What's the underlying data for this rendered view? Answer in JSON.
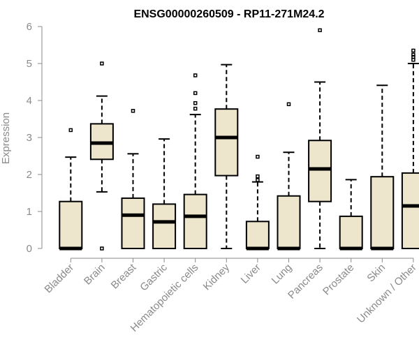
{
  "chart_data": {
    "type": "boxplot",
    "title": "ENSG00000260509 - RP11-271M24.2",
    "xlabel": "",
    "ylabel": "Expression",
    "ylim": [
      0,
      6
    ],
    "yticks": [
      0,
      1,
      2,
      3,
      4,
      5,
      6
    ],
    "grid": false,
    "colors": {
      "box_fill": "#ede6cd",
      "box_stroke": "#000000",
      "axis": "#8a8a8a"
    },
    "categories": [
      "Bladder",
      "Brain",
      "Breast",
      "Gastric",
      "Hematopoietic cells",
      "Kidney",
      "Liver",
      "Lung",
      "Pancreas",
      "Prostate",
      "Skin",
      "Unknown / Other"
    ],
    "boxes": [
      {
        "name": "Bladder",
        "whislo": 0,
        "q1": 0,
        "med": 0,
        "q3": 1.27,
        "whishi": 2.47,
        "fliers": [
          3.2
        ]
      },
      {
        "name": "Brain",
        "whislo": 1.53,
        "q1": 2.41,
        "med": 2.85,
        "q3": 3.37,
        "whishi": 4.12,
        "fliers": [
          5.0,
          0.0
        ]
      },
      {
        "name": "Breast",
        "whislo": 0,
        "q1": 0,
        "med": 0.9,
        "q3": 1.36,
        "whishi": 2.56,
        "fliers": [
          3.72
        ]
      },
      {
        "name": "Gastric",
        "whislo": 0,
        "q1": 0,
        "med": 0.72,
        "q3": 1.2,
        "whishi": 2.96,
        "fliers": []
      },
      {
        "name": "Hematopoietic cells",
        "whislo": 0,
        "q1": 0,
        "med": 0.87,
        "q3": 1.46,
        "whishi": 3.62,
        "fliers": [
          3.78,
          3.93,
          4.2,
          4.68
        ]
      },
      {
        "name": "Kidney",
        "whislo": 0,
        "q1": 1.97,
        "med": 3.0,
        "q3": 3.77,
        "whishi": 4.97,
        "fliers": []
      },
      {
        "name": "Liver",
        "whislo": 0,
        "q1": 0,
        "med": 0,
        "q3": 0.73,
        "whishi": 1.8,
        "fliers": [
          1.85,
          1.95,
          2.48
        ]
      },
      {
        "name": "Lung",
        "whislo": 0,
        "q1": 0,
        "med": 0,
        "q3": 1.42,
        "whishi": 2.6,
        "fliers": [
          3.9
        ]
      },
      {
        "name": "Pancreas",
        "whislo": 0,
        "q1": 1.27,
        "med": 2.15,
        "q3": 2.92,
        "whishi": 4.5,
        "fliers": [
          5.9
        ]
      },
      {
        "name": "Prostate",
        "whislo": 0,
        "q1": 0,
        "med": 0,
        "q3": 0.87,
        "whishi": 1.86,
        "fliers": []
      },
      {
        "name": "Skin",
        "whislo": 0,
        "q1": 0,
        "med": 0,
        "q3": 1.94,
        "whishi": 4.41,
        "fliers": []
      },
      {
        "name": "Unknown / Other",
        "whislo": 0,
        "q1": 0,
        "med": 1.15,
        "q3": 2.04,
        "whishi": 5.0,
        "fliers": [
          5.1,
          5.18,
          5.24,
          5.35
        ]
      }
    ]
  }
}
